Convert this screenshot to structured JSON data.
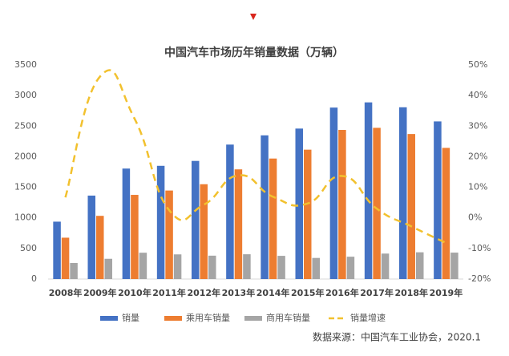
{
  "chart_data": {
    "type": "bar_line",
    "title": "中国汽车市场历年销量数据（万辆）",
    "source": "数据来源：中国汽车工业协会，2020.1",
    "categories": [
      "2008年",
      "2009年",
      "2010年",
      "2011年",
      "2012年",
      "2013年",
      "2014年",
      "2015年",
      "2016年",
      "2017年",
      "2018年",
      "2019年"
    ],
    "series": [
      {
        "name": "销量",
        "type": "bar",
        "color": "#4472c4",
        "values": [
          938,
          1364,
          1806,
          1851,
          1931,
          2198,
          2349,
          2460,
          2803,
          2888,
          2808,
          2577
        ]
      },
      {
        "name": "乘用车销量",
        "type": "bar",
        "color": "#ed7d31",
        "values": [
          676,
          1033,
          1376,
          1447,
          1550,
          1793,
          1970,
          2115,
          2438,
          2472,
          2371,
          2144
        ]
      },
      {
        "name": "商用车销量",
        "type": "bar",
        "color": "#a5a5a5",
        "values": [
          262,
          331,
          430,
          403,
          382,
          405,
          379,
          345,
          365,
          416,
          437,
          432
        ]
      },
      {
        "name": "销量增速",
        "type": "line",
        "axis": "y2",
        "color": "#f2c12e",
        "values": [
          6.7,
          46.2,
          32.4,
          2.5,
          4.3,
          13.9,
          6.9,
          4.7,
          13.7,
          3.0,
          -2.8,
          -8.2
        ]
      }
    ],
    "ylim": [
      0,
      3500
    ],
    "yticks": [
      0,
      500,
      1000,
      1500,
      2000,
      2500,
      3000,
      3500
    ],
    "y2lim": [
      -20,
      50
    ],
    "y2ticks": [
      {
        "value": -20,
        "label": "-20%"
      },
      {
        "value": -10,
        "label": "-10%"
      },
      {
        "value": 0,
        "label": "0%"
      },
      {
        "value": 10,
        "label": "10%"
      },
      {
        "value": 20,
        "label": "20%"
      },
      {
        "value": 30,
        "label": "30%"
      },
      {
        "value": 40,
        "label": "40%"
      },
      {
        "value": 50,
        "label": "50%"
      }
    ],
    "legend": "bottom"
  }
}
